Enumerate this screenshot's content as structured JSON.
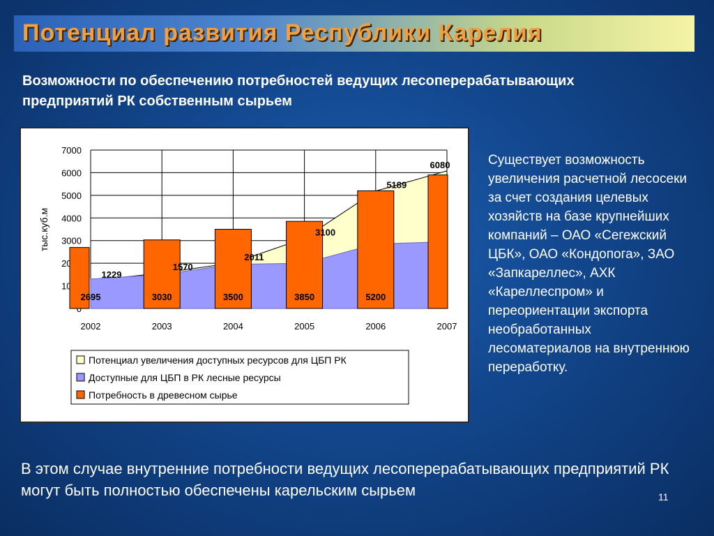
{
  "slide": {
    "title": "Потенциал развития Республики Карелия",
    "subtitle": "Возможности по обеспечению потребностей ведущих лесоперерабатывающих предприятий РК собственным сырьем",
    "side_text": "Существует возможность увеличения расчетной лесосеки за счет создания целевых хозяйств на базе крупнейших компаний – ОАО «Сегежский ЦБК», ОАО «Кондопога», ЗАО «Запкареллес», АХК «Кареллеспром» и переориентации экспорта необработанных лесоматериалов на внутреннюю переработку.",
    "bottom_text": "В этом случае внутренние потребности ведущих лесоперерабатывающих предприятий РК могут быть полностью обеспечены карельским сырьем",
    "page_number": "11"
  },
  "chart_data": {
    "type": "bar",
    "x": [
      2002,
      2003,
      2004,
      2005,
      2006,
      2007
    ],
    "x_tick_labels": [
      "2002",
      "2003",
      "2004",
      "2005",
      "2006",
      "2007"
    ],
    "ylabel": "тыс.куб.м",
    "ylim": [
      0,
      7000
    ],
    "y_ticks": [
      0,
      1000,
      2000,
      3000,
      4000,
      5000,
      6000,
      7000
    ],
    "grid": true,
    "legend_position": "bottom",
    "series": [
      {
        "name": "Потенциал увеличения доступных ресурсов для ЦБП РК",
        "kind": "area-stacked",
        "color": "#ffffcc",
        "values": [
          1229,
          1570,
          2011,
          3100,
          5189,
          6080
        ],
        "value_labels": [
          "1229",
          "1570",
          "2011",
          "3100",
          "5189",
          "6080"
        ]
      },
      {
        "name": "Доступные для ЦБП в РК лесные ресурсы",
        "kind": "area",
        "color": "#9999ff",
        "values": [
          1300,
          1500,
          1950,
          2000,
          2850,
          2950
        ]
      },
      {
        "name": "Потребность в древесном сырье",
        "kind": "bar",
        "color": "#ff6600",
        "values": [
          2695,
          3030,
          3500,
          3850,
          5200,
          5900
        ],
        "value_labels": [
          "2695",
          "3030",
          "3500",
          "3850",
          "5200",
          ""
        ]
      }
    ]
  }
}
